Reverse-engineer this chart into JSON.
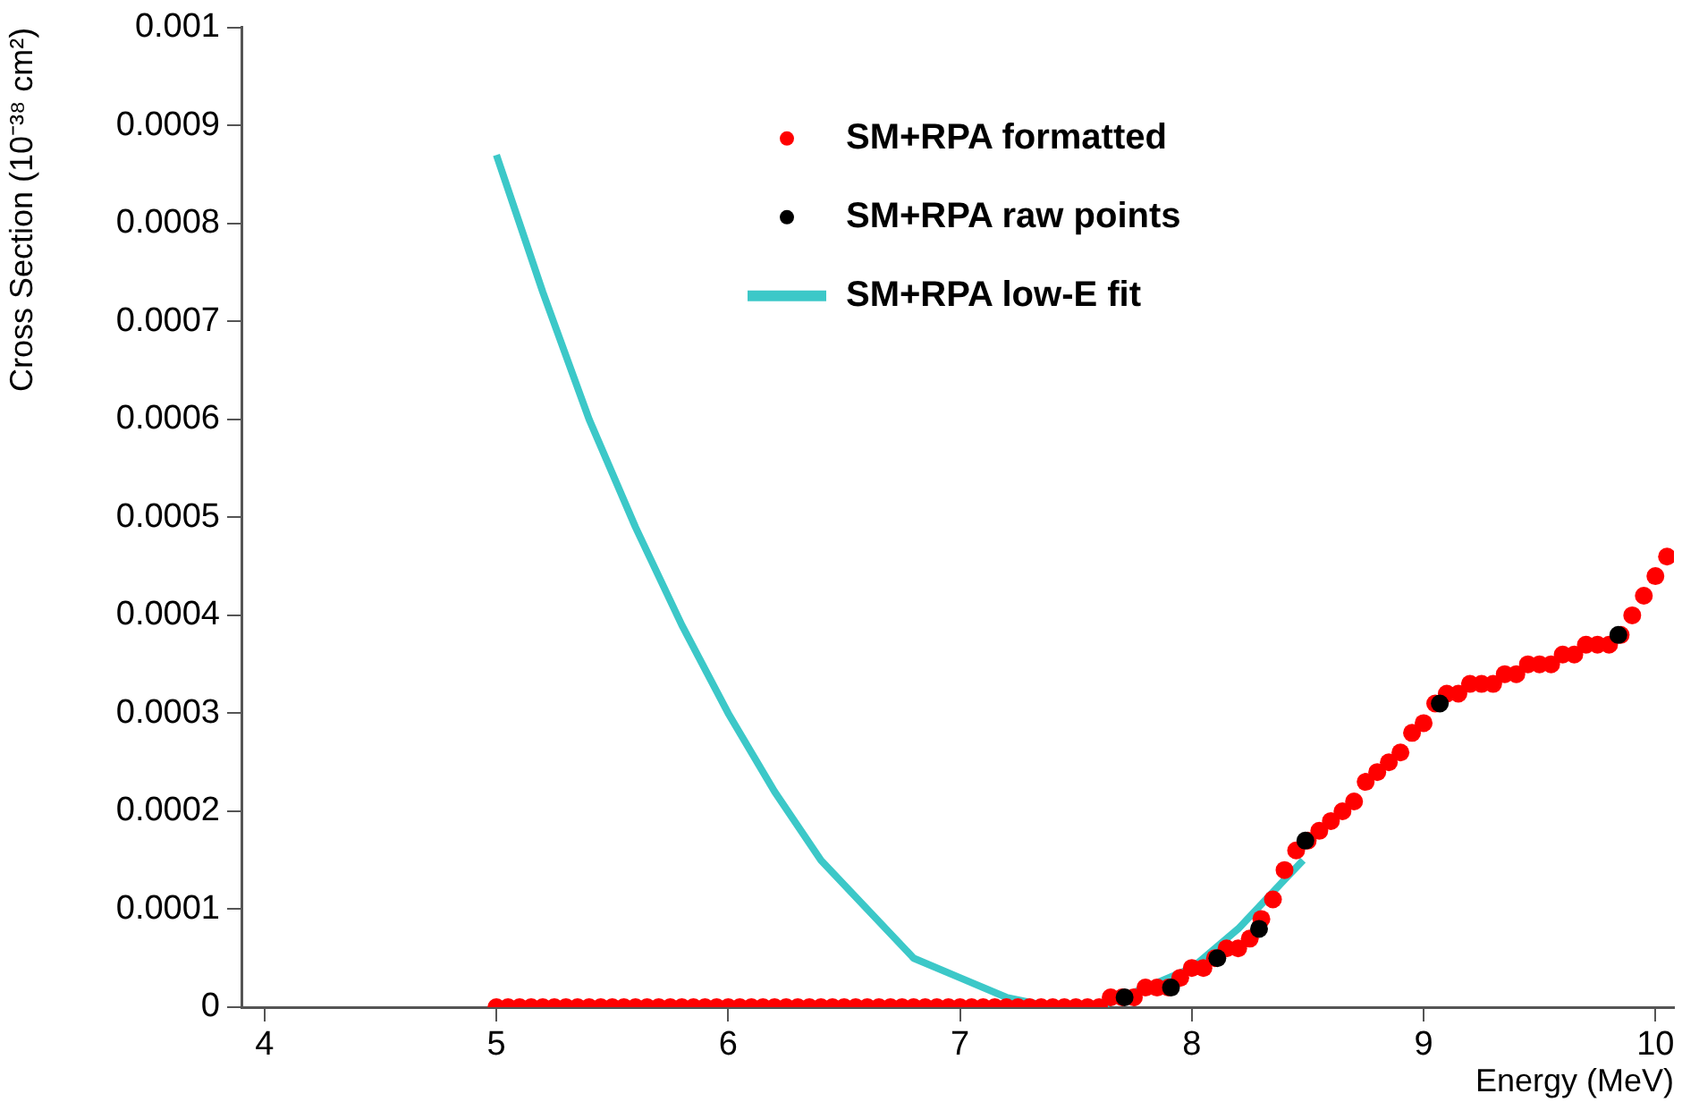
{
  "chart_data": {
    "type": "scatter",
    "xlabel": "Energy (MeV)",
    "ylabel": "Cross Section (10⁻³⁸ cm²)",
    "xlim": [
      3.9,
      10.08
    ],
    "ylim": [
      0,
      0.001
    ],
    "xticks": [
      4,
      5,
      6,
      7,
      8,
      9,
      10
    ],
    "yticks": [
      0,
      0.0001,
      0.0002,
      0.0003,
      0.0004,
      0.0005,
      0.0006,
      0.0007,
      0.0008,
      0.0009,
      0.001
    ],
    "grid": false,
    "legend": "top right",
    "marker": "circle",
    "series": [
      {
        "name": "SM+RPA formatted",
        "type": "scatter",
        "color": "#ff0000",
        "x": [
          5.0,
          5.05,
          5.1,
          5.15,
          5.2,
          5.25,
          5.3,
          5.35,
          5.4,
          5.45,
          5.5,
          5.55,
          5.6,
          5.65,
          5.7,
          5.75,
          5.8,
          5.85,
          5.9,
          5.95,
          6.0,
          6.05,
          6.1,
          6.15,
          6.2,
          6.25,
          6.3,
          6.35,
          6.4,
          6.45,
          6.5,
          6.55,
          6.6,
          6.65,
          6.7,
          6.75,
          6.8,
          6.85,
          6.9,
          6.95,
          7.0,
          7.05,
          7.1,
          7.15,
          7.2,
          7.25,
          7.3,
          7.35,
          7.4,
          7.45,
          7.5,
          7.55,
          7.6,
          7.65,
          7.7,
          7.75,
          7.8,
          7.85,
          7.9,
          7.95,
          8.0,
          8.05,
          8.1,
          8.15,
          8.2,
          8.25,
          8.3,
          8.35,
          8.4,
          8.45,
          8.5,
          8.55,
          8.6,
          8.65,
          8.7,
          8.75,
          8.8,
          8.85,
          8.9,
          8.95,
          9.0,
          9.05,
          9.1,
          9.15,
          9.2,
          9.25,
          9.3,
          9.35,
          9.4,
          9.45,
          9.5,
          9.55,
          9.6,
          9.65,
          9.7,
          9.75,
          9.8,
          9.85,
          9.9,
          9.95,
          10.0,
          10.05
        ],
        "values": [
          0,
          0,
          0,
          0,
          0,
          0,
          0,
          0,
          0,
          0,
          0,
          0,
          0,
          0,
          0,
          0,
          0,
          0,
          0,
          0,
          0,
          0,
          0,
          0,
          0,
          0,
          0,
          0,
          0,
          0,
          0,
          0,
          0,
          0,
          0,
          0,
          0,
          0,
          0,
          0,
          0,
          0,
          0,
          0,
          0,
          0,
          0,
          0,
          0,
          0,
          0,
          0,
          0,
          1e-05,
          1e-05,
          1e-05,
          2e-05,
          2e-05,
          2e-05,
          3e-05,
          4e-05,
          4e-05,
          5e-05,
          6e-05,
          6e-05,
          7e-05,
          9e-05,
          0.00011,
          0.00014,
          0.00016,
          0.00017,
          0.00018,
          0.00019,
          0.0002,
          0.00021,
          0.00023,
          0.00024,
          0.00025,
          0.00026,
          0.00028,
          0.00029,
          0.00031,
          0.00032,
          0.00032,
          0.00033,
          0.00033,
          0.00033,
          0.00034,
          0.00034,
          0.00035,
          0.00035,
          0.00035,
          0.00036,
          0.00036,
          0.00037,
          0.00037,
          0.00037,
          0.00038,
          0.0004,
          0.00042,
          0.00044,
          0.00046
        ]
      },
      {
        "name": "SM+RPA raw points",
        "type": "scatter",
        "color": "#000000",
        "x": [
          7.71,
          7.91,
          8.11,
          8.29,
          8.49,
          9.07,
          9.84
        ],
        "values": [
          1e-05,
          2e-05,
          5e-05,
          8e-05,
          0.00017,
          0.00031,
          0.00038
        ]
      },
      {
        "name": "SM+RPA low-E fit",
        "type": "line",
        "color": "#3cc8c8",
        "marker": "none",
        "x": [
          5.0,
          5.2,
          5.4,
          5.6,
          5.8,
          6.0,
          6.2,
          6.4,
          6.6,
          6.8,
          7.0,
          7.2,
          7.4,
          7.6,
          7.8,
          8.0,
          8.2,
          8.4,
          8.48
        ],
        "values": [
          0.00087,
          0.00073,
          0.0006,
          0.00049,
          0.00039,
          0.0003,
          0.00022,
          0.00015,
          0.0001,
          5e-05,
          3e-05,
          1e-05,
          0,
          0,
          2e-05,
          4e-05,
          8e-05,
          0.00013,
          0.00015
        ]
      }
    ]
  }
}
